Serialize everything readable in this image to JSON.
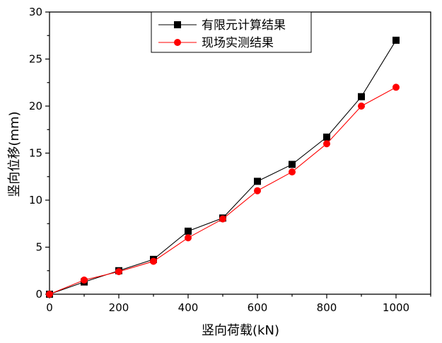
{
  "chart_data": {
    "type": "line",
    "title": "",
    "xlabel": "竖向荷载(kN)",
    "ylabel": "竖向位移(mm)",
    "xlim": [
      0,
      1100
    ],
    "ylim": [
      0,
      30
    ],
    "x_ticks": [
      0,
      200,
      400,
      600,
      800,
      1000
    ],
    "y_ticks": [
      0,
      5,
      10,
      15,
      20,
      25,
      30
    ],
    "grid": false,
    "legend_position": "top-center",
    "x": [
      0,
      100,
      200,
      300,
      400,
      500,
      600,
      700,
      800,
      900,
      1000
    ],
    "series": [
      {
        "name": "有限元计算结果",
        "color": "#000000",
        "marker": "square",
        "values": [
          0,
          1.3,
          2.5,
          3.7,
          6.7,
          8.1,
          12.0,
          13.8,
          16.7,
          21.0,
          27.0
        ]
      },
      {
        "name": "现场实测结果",
        "color": "#ff0000",
        "marker_fill": "#ff0000",
        "marker": "circle",
        "values": [
          0,
          1.5,
          2.4,
          3.5,
          6.0,
          8.0,
          11.0,
          13.0,
          16.0,
          20.0,
          22.0
        ]
      }
    ]
  }
}
